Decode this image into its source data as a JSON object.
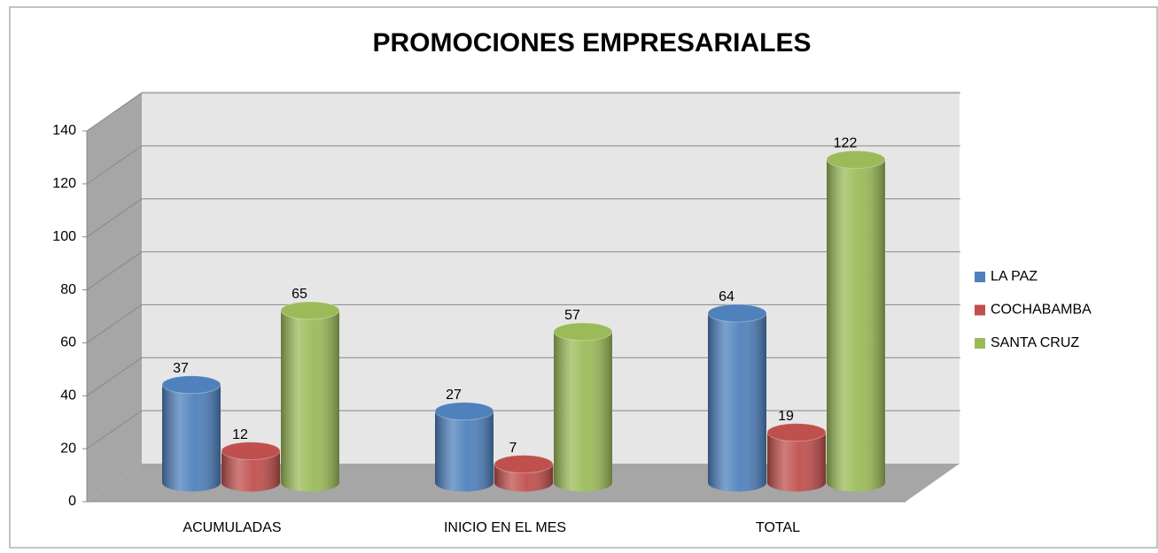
{
  "chart_data": {
    "type": "bar",
    "title": "PROMOCIONES EMPRESARIALES",
    "categories": [
      "ACUMULADAS",
      "INICIO EN EL MES",
      "TOTAL"
    ],
    "series": [
      {
        "name": "LA PAZ",
        "color": "#4f81bd",
        "values": [
          37,
          27,
          64
        ]
      },
      {
        "name": "COCHABAMBA",
        "color": "#c0504d",
        "values": [
          12,
          7,
          19
        ]
      },
      {
        "name": "SANTA CRUZ",
        "color": "#9bbb59",
        "values": [
          65,
          57,
          122
        ]
      }
    ],
    "ylim": [
      0,
      140
    ],
    "yticks": [
      0,
      20,
      40,
      60,
      80,
      100,
      120,
      140
    ],
    "grid": true,
    "legend": "right"
  }
}
